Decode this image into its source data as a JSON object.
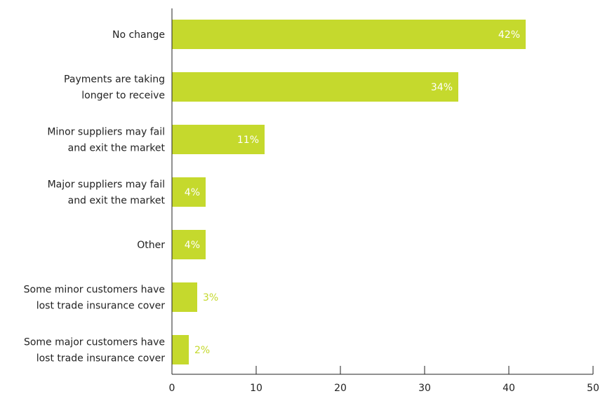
{
  "chart_data": {
    "type": "bar",
    "orientation": "horizontal",
    "categories": [
      [
        "No change"
      ],
      [
        "Payments are taking",
        "longer to receive"
      ],
      [
        "Minor suppliers may fail",
        "and exit the market"
      ],
      [
        "Major suppliers may fail",
        "and exit the market"
      ],
      [
        "Other"
      ],
      [
        "Some minor customers have",
        "lost trade insurance cover"
      ],
      [
        "Some major customers have",
        "lost trade insurance cover"
      ]
    ],
    "values": [
      42,
      34,
      11,
      4,
      4,
      3,
      2
    ],
    "data_labels": [
      "42%",
      "34%",
      "11%",
      "4%",
      "4%",
      "3%",
      "2%"
    ],
    "xlim": [
      0,
      50
    ],
    "x_ticks": [
      0,
      10,
      20,
      30,
      40,
      50
    ],
    "x_tick_labels": [
      "0",
      "10",
      "20",
      "30",
      "40",
      "50"
    ],
    "title": "",
    "xlabel": "",
    "ylabel": "",
    "grid": false,
    "bar_color": "#c5d92d",
    "inside_label_color": "#ffffff",
    "outside_label_color": "#c5d92d",
    "axis_color": "#222222"
  }
}
